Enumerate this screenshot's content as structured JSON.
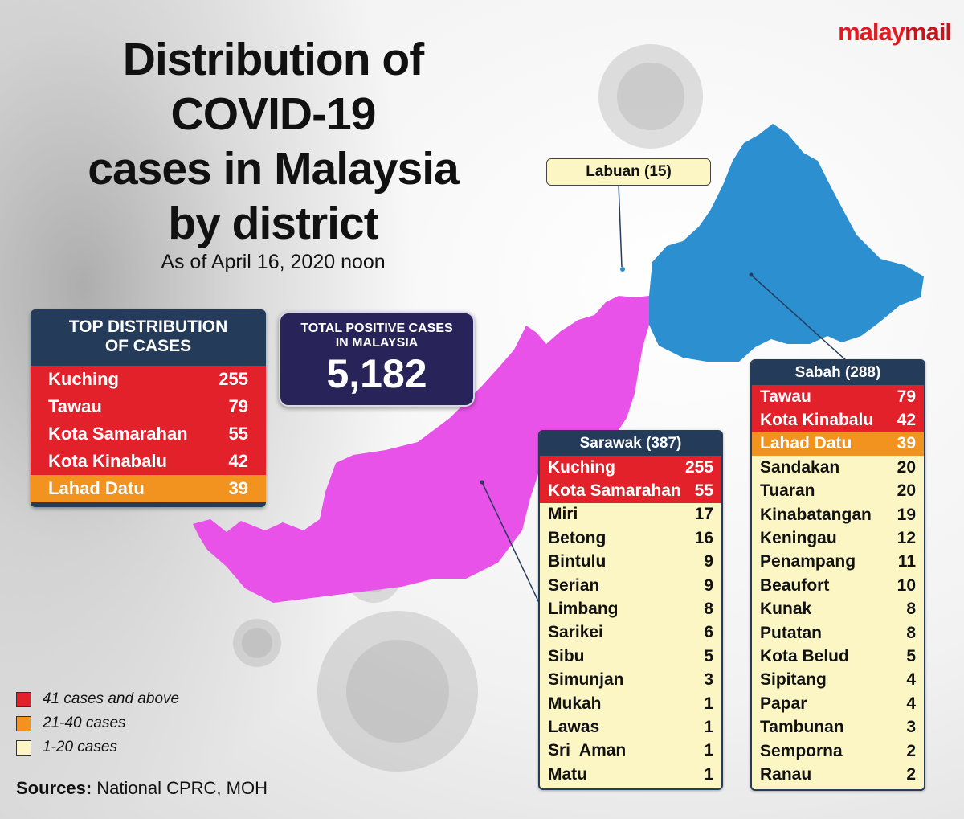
{
  "brand": {
    "part1": "malay",
    "part2": "mail"
  },
  "title": {
    "line1": "Distribution of",
    "line2": "COVID-19",
    "line3": "cases in Malaysia",
    "line4": "by district"
  },
  "subtitle": "As of April 16, 2020 noon",
  "top_distribution": {
    "heading_line1": "TOP DISTRIBUTION",
    "heading_line2": "OF CASES",
    "rows": [
      {
        "district": "Kuching",
        "cases": "255",
        "tier": "red"
      },
      {
        "district": "Tawau",
        "cases": "79",
        "tier": "red"
      },
      {
        "district": "Kota Samarahan",
        "cases": "55",
        "tier": "red"
      },
      {
        "district": "Kota Kinabalu",
        "cases": "42",
        "tier": "red"
      },
      {
        "district": "Lahad Datu",
        "cases": "39",
        "tier": "orange"
      }
    ]
  },
  "total": {
    "label_line1": "TOTAL POSITIVE CASES",
    "label_line2": "IN MALAYSIA",
    "value": "5,182"
  },
  "labuan": {
    "label": "Labuan (15)"
  },
  "sarawak": {
    "heading": "Sarawak (387)",
    "rows": [
      {
        "district": "Kuching",
        "cases": "255",
        "tier": "red"
      },
      {
        "district": "Kota Samarahan",
        "cases": "55",
        "tier": "red"
      },
      {
        "district": "Miri",
        "cases": "17",
        "tier": "pale"
      },
      {
        "district": "Betong",
        "cases": "16",
        "tier": "pale"
      },
      {
        "district": "Bintulu",
        "cases": "9",
        "tier": "pale"
      },
      {
        "district": "Serian",
        "cases": "9",
        "tier": "pale"
      },
      {
        "district": "Limbang",
        "cases": "8",
        "tier": "pale"
      },
      {
        "district": "Sarikei",
        "cases": "6",
        "tier": "pale"
      },
      {
        "district": "Sibu",
        "cases": "5",
        "tier": "pale"
      },
      {
        "district": "Simunjan",
        "cases": "3",
        "tier": "pale"
      },
      {
        "district": "Mukah",
        "cases": "1",
        "tier": "pale"
      },
      {
        "district": "Lawas",
        "cases": "1",
        "tier": "pale"
      },
      {
        "district": "Sri  Aman",
        "cases": "1",
        "tier": "pale"
      },
      {
        "district": "Matu",
        "cases": "1",
        "tier": "pale"
      }
    ]
  },
  "sabah": {
    "heading": "Sabah (288)",
    "rows": [
      {
        "district": "Tawau",
        "cases": "79",
        "tier": "red"
      },
      {
        "district": "Kota Kinabalu",
        "cases": "42",
        "tier": "red"
      },
      {
        "district": "Lahad Datu",
        "cases": "39",
        "tier": "orange"
      },
      {
        "district": "Sandakan",
        "cases": "20",
        "tier": "pale"
      },
      {
        "district": "Tuaran",
        "cases": "20",
        "tier": "pale"
      },
      {
        "district": "Kinabatangan",
        "cases": "19",
        "tier": "pale"
      },
      {
        "district": "Keningau",
        "cases": "12",
        "tier": "pale"
      },
      {
        "district": "Penampang",
        "cases": "11",
        "tier": "pale"
      },
      {
        "district": "Beaufort",
        "cases": "10",
        "tier": "pale"
      },
      {
        "district": "Kunak",
        "cases": "8",
        "tier": "pale"
      },
      {
        "district": "Putatan",
        "cases": "8",
        "tier": "pale"
      },
      {
        "district": "Kota Belud",
        "cases": "5",
        "tier": "pale"
      },
      {
        "district": "Sipitang",
        "cases": "4",
        "tier": "pale"
      },
      {
        "district": "Papar",
        "cases": "4",
        "tier": "pale"
      },
      {
        "district": "Tambunan",
        "cases": "3",
        "tier": "pale"
      },
      {
        "district": "Semporna",
        "cases": "2",
        "tier": "pale"
      },
      {
        "district": "Ranau",
        "cases": "2",
        "tier": "pale"
      }
    ]
  },
  "legend": [
    {
      "label": "41 cases and above",
      "tier": "red"
    },
    {
      "label": "21-40 cases",
      "tier": "orange"
    },
    {
      "label": "1-20 cases",
      "tier": "pale"
    }
  ],
  "sources": {
    "label": "Sources:",
    "text": " National CPRC, MOH"
  },
  "colors": {
    "sarawak_fill": "#e952e8",
    "sabah_fill": "#2b8fd0",
    "red_tier": "#e3212b",
    "orange_tier": "#f3931f",
    "pale_tier": "#fcf6c4",
    "header_navy": "#243b5a",
    "total_box": "#28245a"
  }
}
